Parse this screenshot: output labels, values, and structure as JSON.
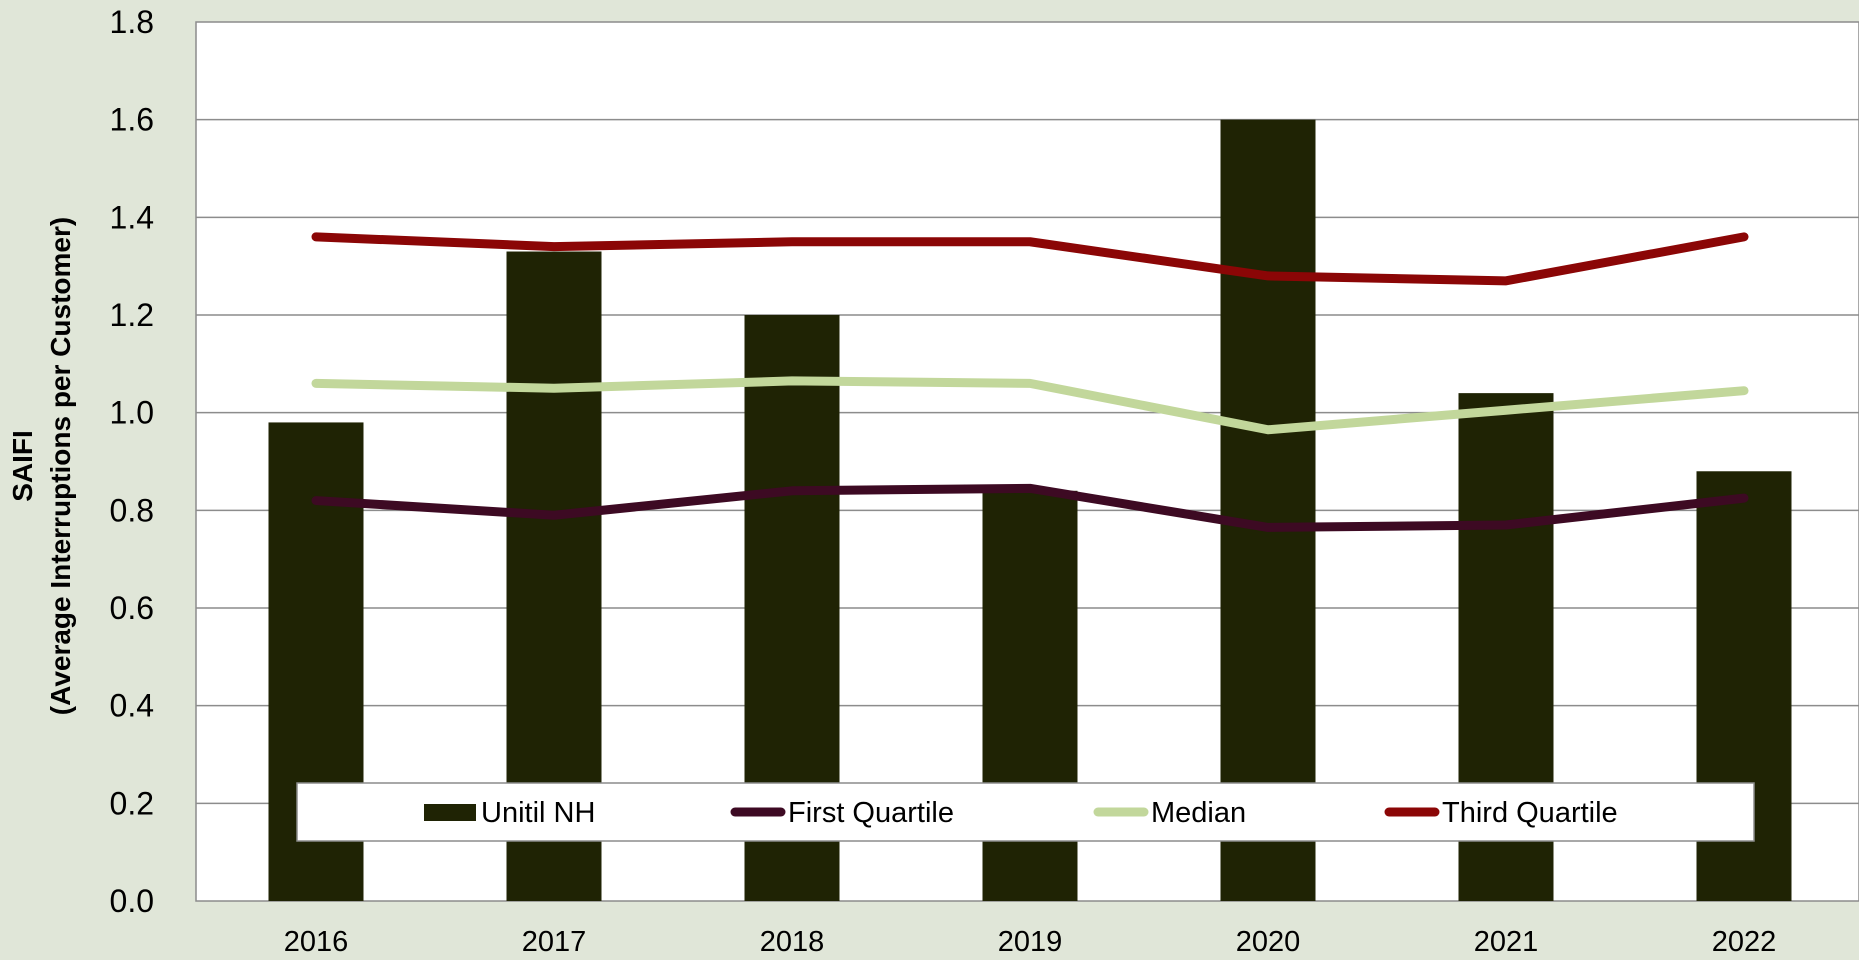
{
  "chart_data": {
    "type": "bar",
    "categories": [
      "2016",
      "2017",
      "2018",
      "2019",
      "2020",
      "2021",
      "2022"
    ],
    "ylim": [
      0,
      1.8
    ],
    "yticks": [
      "0.0",
      "0.2",
      "0.4",
      "0.6",
      "0.8",
      "1.0",
      "1.2",
      "1.4",
      "1.6",
      "1.8"
    ],
    "ylabel_line1": "SAIFI",
    "ylabel_line2": "(Average Interruptions per Customer)",
    "xlabel": "",
    "grid": true,
    "legend_position": "bottom-inside",
    "series": [
      {
        "name": "Unitil NH",
        "type": "bar",
        "color": "#1f2304",
        "values": [
          0.98,
          1.33,
          1.2,
          0.84,
          1.6,
          1.04,
          0.88
        ]
      },
      {
        "name": "First Quartile",
        "type": "line",
        "color": "#3d0a23",
        "values": [
          0.82,
          0.79,
          0.84,
          0.845,
          0.765,
          0.77,
          0.825
        ]
      },
      {
        "name": "Median",
        "type": "line",
        "color": "#c2d79b",
        "values": [
          1.06,
          1.05,
          1.065,
          1.06,
          0.965,
          1.005,
          1.045
        ]
      },
      {
        "name": "Third Quartile",
        "type": "line",
        "color": "#8b0606",
        "values": [
          1.36,
          1.34,
          1.35,
          1.35,
          1.28,
          1.27,
          1.36
        ]
      }
    ],
    "legend_labels": [
      "Unitil NH",
      "First Quartile",
      "Median",
      "Third Quartile"
    ]
  }
}
